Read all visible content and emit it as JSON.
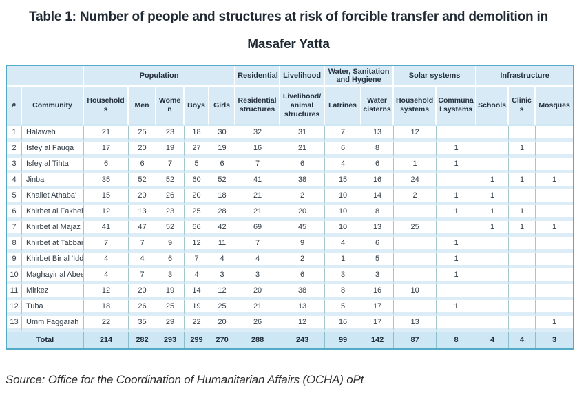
{
  "title": "Table 1: Number of people and structures at risk of forcible transfer and demolition in Masafer Yatta",
  "source": "Source: Office for the Coordination of Humanitarian Affairs (OCHA) oPt",
  "colors": {
    "outer_border_teal": "#54abc8",
    "header_bg": "#d7eaf6",
    "row_separator_blue": "#ddedf7",
    "total_row_bg": "#cde8f4",
    "column_line_teal": "#a3c6c9",
    "text_dark": "#26323e"
  },
  "table": {
    "header_groups": [
      {
        "label": "",
        "span": 2
      },
      {
        "label": "Population",
        "span": 5
      },
      {
        "label": "Residential",
        "span": 1
      },
      {
        "label": "Livelihood",
        "span": 1
      },
      {
        "label": "Water, Sanitation and Hygiene",
        "span": 2
      },
      {
        "label": "Solar systems",
        "span": 2
      },
      {
        "label": "Infrastructure",
        "span": 3
      }
    ],
    "columns": [
      "#",
      "Community",
      "Households",
      "Men",
      "Women",
      "Boys",
      "Girls",
      "Residential structures",
      "Livelihood/ animal structures",
      "Latrines",
      "Water cisterns",
      "Household systems",
      "Communal systems",
      "Schools",
      "Clinics",
      "Mosques"
    ],
    "rows": [
      {
        "num": "1",
        "community": "Halaweh",
        "values": [
          21,
          25,
          23,
          18,
          30,
          32,
          31,
          7,
          13,
          12,
          "",
          "",
          "",
          ""
        ]
      },
      {
        "num": "2",
        "community": "Isfey al Fauqa",
        "values": [
          17,
          20,
          19,
          27,
          19,
          16,
          21,
          6,
          8,
          "",
          1,
          "",
          1,
          ""
        ]
      },
      {
        "num": "3",
        "community": "Isfey al Tihta",
        "values": [
          6,
          6,
          7,
          5,
          6,
          7,
          6,
          4,
          6,
          1,
          1,
          "",
          "",
          ""
        ]
      },
      {
        "num": "4",
        "community": "Jinba",
        "values": [
          35,
          52,
          52,
          60,
          52,
          41,
          38,
          15,
          16,
          24,
          "",
          1,
          1,
          1
        ]
      },
      {
        "num": "5",
        "community": "Khallet Athaba'",
        "values": [
          15,
          20,
          26,
          20,
          18,
          21,
          2,
          10,
          14,
          2,
          1,
          1,
          "",
          ""
        ]
      },
      {
        "num": "6",
        "community": "Khirbet al Fakheit",
        "values": [
          12,
          13,
          23,
          25,
          28,
          21,
          20,
          10,
          8,
          "",
          1,
          1,
          1,
          ""
        ]
      },
      {
        "num": "7",
        "community": "Khirbet al Majaz",
        "values": [
          41,
          47,
          52,
          66,
          42,
          69,
          45,
          10,
          13,
          25,
          "",
          1,
          1,
          1
        ]
      },
      {
        "num": "8",
        "community": "Khirbet at Tabban",
        "values": [
          7,
          7,
          9,
          12,
          11,
          7,
          9,
          4,
          6,
          "",
          1,
          "",
          "",
          ""
        ]
      },
      {
        "num": "9",
        "community": "Khirbet Bir al 'Idd",
        "values": [
          4,
          4,
          6,
          7,
          4,
          4,
          2,
          1,
          5,
          "",
          1,
          "",
          "",
          ""
        ]
      },
      {
        "num": "10",
        "community": "Maghayir al Abeed",
        "values": [
          4,
          7,
          3,
          4,
          3,
          3,
          6,
          3,
          3,
          "",
          1,
          "",
          "",
          ""
        ]
      },
      {
        "num": "11",
        "community": "Mirkez",
        "values": [
          12,
          20,
          19,
          14,
          12,
          20,
          38,
          8,
          16,
          10,
          "",
          "",
          "",
          ""
        ]
      },
      {
        "num": "12",
        "community": "Tuba",
        "values": [
          18,
          26,
          25,
          19,
          25,
          21,
          13,
          5,
          17,
          "",
          1,
          "",
          "",
          ""
        ]
      },
      {
        "num": "13",
        "community": "Umm Faggarah",
        "values": [
          22,
          35,
          29,
          22,
          20,
          26,
          12,
          16,
          17,
          13,
          "",
          "",
          "",
          1
        ]
      }
    ],
    "total_label": "Total",
    "total_values": [
      214,
      282,
      293,
      299,
      270,
      288,
      243,
      99,
      142,
      87,
      8,
      4,
      4,
      3
    ]
  }
}
